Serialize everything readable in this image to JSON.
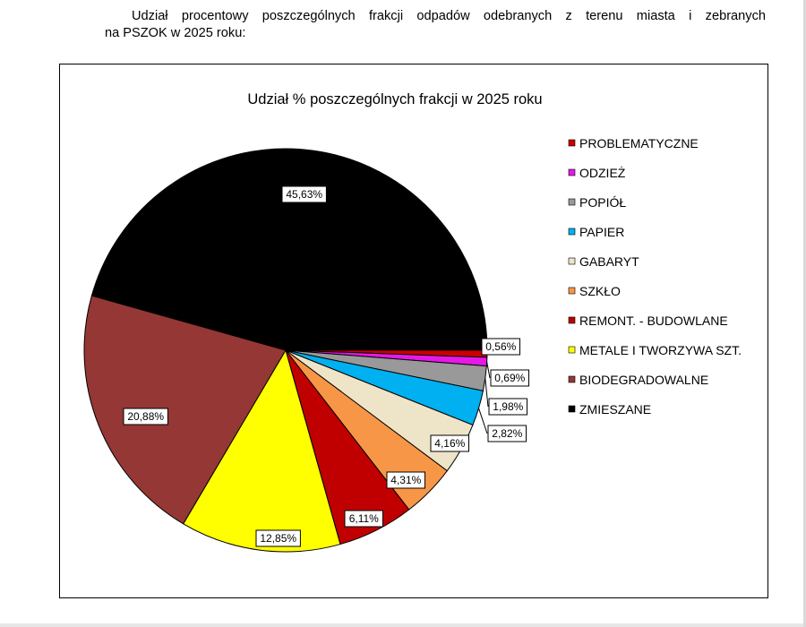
{
  "document": {
    "intro_line_1": "Udział procentowy poszczególnych frakcji odpadów odebranych z terenu miasta i zebranych",
    "intro_line_2": "na PSZOK w 2025 roku:"
  },
  "chart_data": {
    "type": "pie",
    "title": "Udział % poszczególnych frakcji w 2025 roku",
    "unit": "%",
    "label_format": "comma-decimal-percent",
    "legend_position": "right",
    "categories": [
      "PROBLEMATYCZNE",
      "ODZIEŻ",
      "POPIÓŁ",
      "PAPIER",
      "GABARYT",
      "SZKŁO",
      "REMONT. - BUDOWLANE",
      "METALE I TWORZYWA SZT.",
      "BIODEGRADOWALNE",
      "ZMIESZANE"
    ],
    "values": [
      0.56,
      0.69,
      1.98,
      2.82,
      4.16,
      4.31,
      6.11,
      12.85,
      20.88,
      45.63
    ],
    "data_labels": [
      "0,56%",
      "0,69%",
      "1,98%",
      "2,82%",
      "4,16%",
      "4,31%",
      "6,11%",
      "12,85%",
      "20,88%",
      "45,63%"
    ],
    "colors": [
      "#cc0000",
      "#e619e6",
      "#999999",
      "#00b0f0",
      "#eee4c8",
      "#f79646",
      "#c00000",
      "#ffff00",
      "#953735",
      "#000000"
    ]
  }
}
